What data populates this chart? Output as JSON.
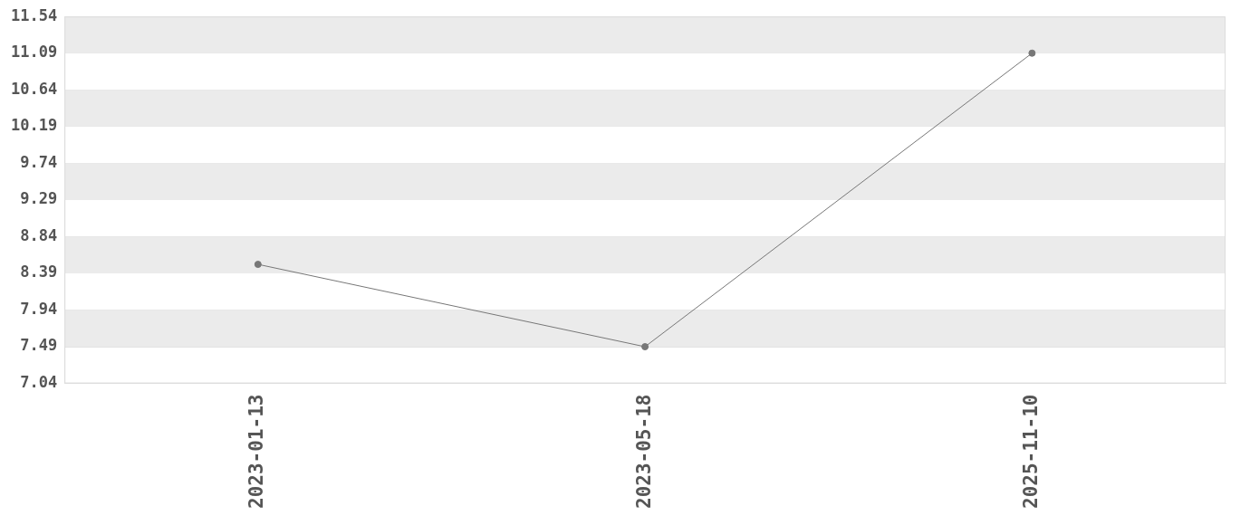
{
  "chart_data": {
    "type": "line",
    "categories": [
      "2023-01-13",
      "2023-05-18",
      "2025-11-10"
    ],
    "series": [
      {
        "color": "#777777",
        "values": [
          8.5,
          7.49,
          11.09
        ]
      }
    ],
    "ylim": [
      7.04,
      11.54
    ],
    "yticks": [
      7.04,
      7.49,
      7.94,
      8.39,
      8.84,
      9.29,
      9.74,
      10.19,
      10.64,
      11.09,
      11.54
    ],
    "grid": "y",
    "legend": false,
    "marker": "circle",
    "line_style": "solid"
  }
}
